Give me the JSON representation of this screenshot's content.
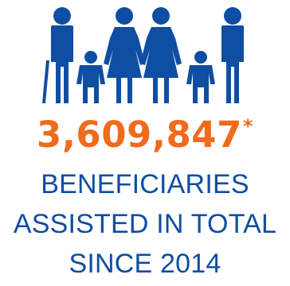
{
  "colors": {
    "brand": "#0e4ea3",
    "accent": "#f26a1b"
  },
  "icon": "family-icon",
  "stat": {
    "value": "3,609,847",
    "asterisk": "*"
  },
  "caption": {
    "line1": "BENEFICIARIES",
    "line2": "ASSISTED IN TOTAL",
    "line3": "SINCE 2014"
  }
}
